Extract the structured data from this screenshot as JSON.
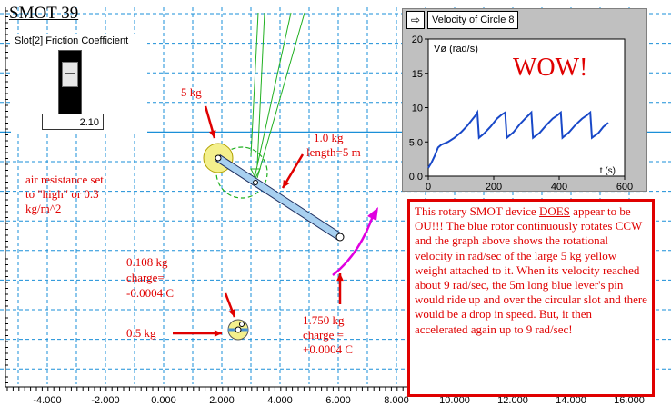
{
  "app": {
    "title": "SMOT 39"
  },
  "slider": {
    "label": "Slot[2] Friction Coefficient",
    "value": "2.10"
  },
  "axis": {
    "x_ticks": [
      "-4.000",
      "-2.000",
      "0.000",
      "2.000",
      "4.000",
      "6.000",
      "8.000",
      "10.000",
      "12.000",
      "14.000",
      "16.000"
    ]
  },
  "annotations": {
    "mass_5kg": "5 kg",
    "rod_mass_line1": "1.0 kg",
    "rod_mass_line2": "length=5 m",
    "air_line1": "air resistance set",
    "air_line2": "to \"high\" or 0.3",
    "air_line3": "kg/m^2",
    "small_line1": "0.108 kg",
    "small_line2": "charge=",
    "small_line3": "-0.0004 C",
    "half_kg": "0.5 kg",
    "pin_line1": "1.750 kg",
    "pin_line2": "charge =",
    "pin_line3": "+0.0004 C"
  },
  "graph": {
    "title": "Velocity of Circle 8",
    "ylabel": "Vø (rad/s)",
    "xlabel": "t (s)",
    "wow": "WOW!"
  },
  "textbox": {
    "p1": "This rotary SMOT device ",
    "emph": "DOES",
    "p2": " appear to be OU!!!  The blue rotor continuously rotates CCW and the graph above shows the rotational velocity in rad/sec of the large 5 kg yellow weight attached to it.  When its velocity reached about 9 rad/sec, the 5m long blue lever's pin would ride up and over the circular slot and there would be a drop in speed.  But, it then accelerated again up to 9 rad/sec!"
  },
  "colors": {
    "grid": "#1a8fd8",
    "annotation": "#e00000",
    "rod": "#a8d0f0",
    "ball": "#f4f08c",
    "trace": "#1848c8",
    "arrow_magenta": "#e000e0",
    "slot_green": "#20b020"
  },
  "chart_data": {
    "type": "line",
    "title": "Velocity of Circle 8",
    "xlabel": "t (s)",
    "ylabel": "Vø (rad/s)",
    "xlim": [
      0,
      600
    ],
    "ylim": [
      0,
      20
    ],
    "x_ticks": [
      0,
      200,
      400,
      600
    ],
    "y_ticks": [
      0,
      5,
      10,
      15,
      20
    ],
    "grid": false,
    "series": [
      {
        "values": [
          [
            0,
            1.2
          ],
          [
            10,
            2.0
          ],
          [
            20,
            3.0
          ],
          [
            30,
            4.2
          ],
          [
            40,
            4.6
          ],
          [
            60,
            5.0
          ],
          [
            80,
            5.6
          ],
          [
            100,
            6.4
          ],
          [
            120,
            7.4
          ],
          [
            135,
            8.3
          ],
          [
            145,
            8.9
          ],
          [
            150,
            9.3
          ],
          [
            155,
            5.6
          ],
          [
            170,
            6.2
          ],
          [
            190,
            7.2
          ],
          [
            210,
            8.4
          ],
          [
            225,
            9.0
          ],
          [
            235,
            9.3
          ],
          [
            240,
            5.6
          ],
          [
            260,
            6.4
          ],
          [
            280,
            7.6
          ],
          [
            300,
            8.6
          ],
          [
            315,
            9.3
          ],
          [
            320,
            5.6
          ],
          [
            340,
            6.3
          ],
          [
            360,
            7.4
          ],
          [
            380,
            8.4
          ],
          [
            395,
            8.9
          ],
          [
            405,
            9.3
          ],
          [
            410,
            5.6
          ],
          [
            430,
            6.4
          ],
          [
            450,
            7.5
          ],
          [
            470,
            8.4
          ],
          [
            485,
            8.9
          ],
          [
            495,
            9.3
          ],
          [
            500,
            5.6
          ],
          [
            520,
            6.3
          ],
          [
            535,
            7.2
          ],
          [
            550,
            7.8
          ]
        ]
      }
    ]
  }
}
